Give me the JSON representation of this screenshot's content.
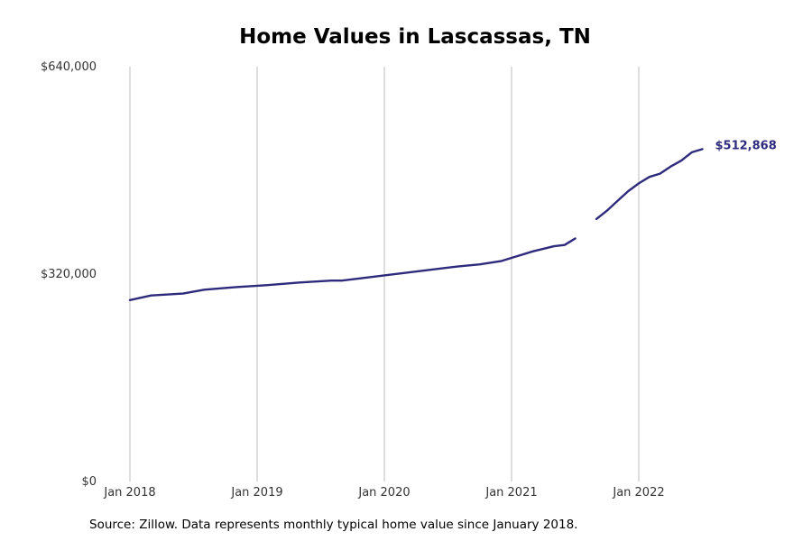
{
  "chart_data": {
    "type": "line",
    "title": "Home Values in Lascassas, TN",
    "source": "Source: Zillow. Data represents monthly typical home value since January 2018.",
    "ylim": [
      0,
      640000
    ],
    "yticks": [
      {
        "value": 0,
        "label": "$0"
      },
      {
        "value": 320000,
        "label": "$320,000"
      },
      {
        "value": 640000,
        "label": "$640,000"
      }
    ],
    "xticks": [
      {
        "value": "2018-01",
        "label": "Jan 2018"
      },
      {
        "value": "2019-01",
        "label": "Jan 2019"
      },
      {
        "value": "2020-01",
        "label": "Jan 2020"
      },
      {
        "value": "2021-01",
        "label": "Jan 2021"
      },
      {
        "value": "2022-01",
        "label": "Jan 2022"
      }
    ],
    "x_start": "2018-01",
    "x_end": "2022-10",
    "grid": "vertical",
    "line_color": "#2e2a7c",
    "end_label": "$512,868",
    "series": [
      {
        "segments": [
          [
            [
              "2018-01",
              280000
            ],
            [
              "2018-03",
              287000
            ],
            [
              "2018-06",
              290000
            ],
            [
              "2018-08",
              296000
            ],
            [
              "2018-11",
              300000
            ],
            [
              "2019-02",
              303000
            ],
            [
              "2019-05",
              307000
            ],
            [
              "2019-08",
              310000
            ],
            [
              "2019-09",
              310000
            ],
            [
              "2019-11",
              314000
            ],
            [
              "2020-01",
              318000
            ],
            [
              "2020-03",
              322000
            ],
            [
              "2020-05",
              326000
            ],
            [
              "2020-07",
              330000
            ],
            [
              "2020-08",
              332000
            ],
            [
              "2020-10",
              335000
            ],
            [
              "2020-12",
              340000
            ],
            [
              "2021-01",
              345000
            ],
            [
              "2021-03",
              355000
            ],
            [
              "2021-05",
              363000
            ],
            [
              "2021-06",
              365000
            ],
            [
              "2021-07",
              375000
            ]
          ],
          [
            [
              "2021-09",
              405000
            ],
            [
              "2021-10",
              418000
            ],
            [
              "2021-11",
              433000
            ],
            [
              "2021-12",
              448000
            ],
            [
              "2022-01",
              460000
            ],
            [
              "2022-02",
              470000
            ],
            [
              "2022-03",
              475000
            ],
            [
              "2022-04",
              486000
            ],
            [
              "2022-05",
              495000
            ],
            [
              "2022-06",
              508000
            ],
            [
              "2022-07",
              512868
            ]
          ]
        ]
      }
    ]
  }
}
